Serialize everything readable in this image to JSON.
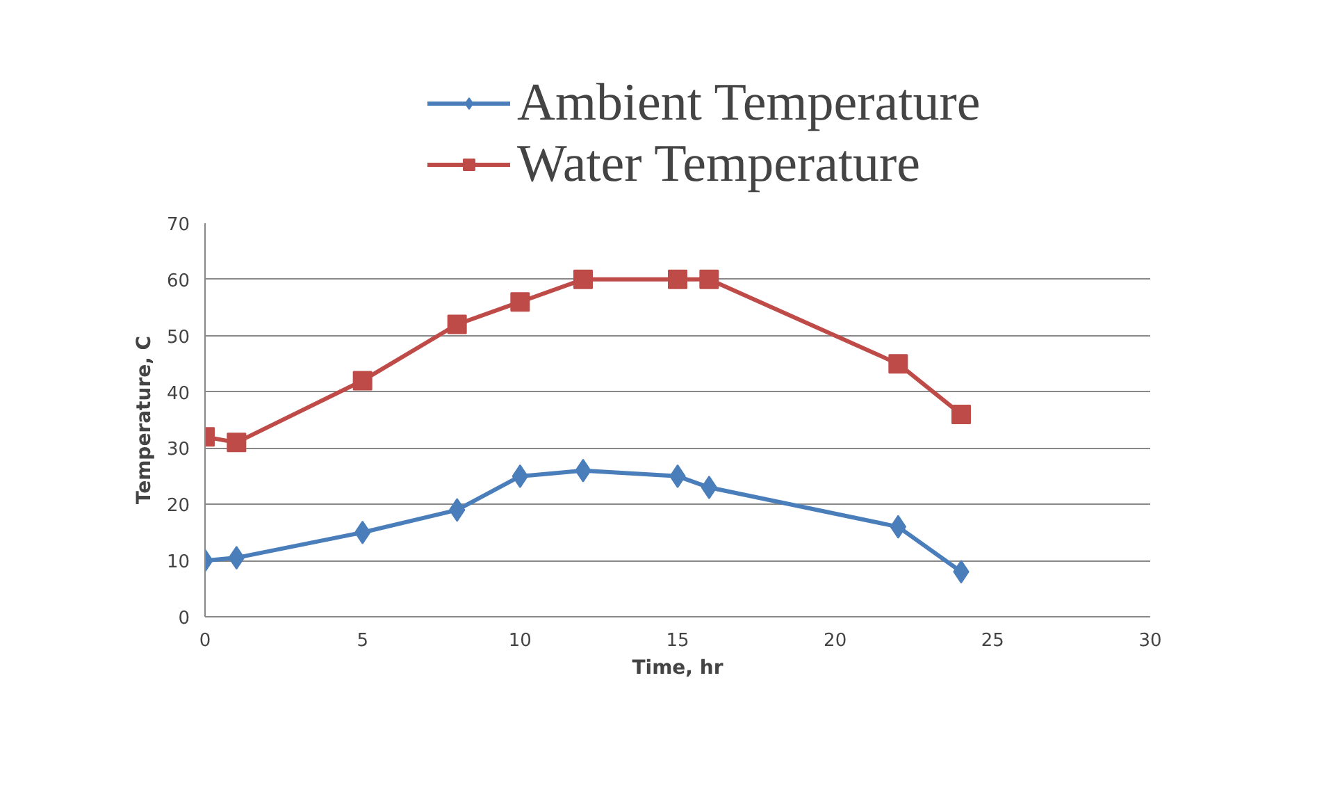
{
  "chart_data": {
    "type": "line",
    "xlabel": "Time, hr",
    "ylabel": "Temperature, C",
    "x": [
      0,
      1,
      5,
      8,
      10,
      12,
      15,
      16,
      22,
      24
    ],
    "series": [
      {
        "name": "Ambient Temperature",
        "color": "#4a7ebb",
        "marker": "diamond",
        "values": [
          10,
          10.5,
          15,
          19,
          25,
          26,
          25,
          23,
          16,
          8
        ]
      },
      {
        "name": "Water Temperature",
        "color": "#be4b48",
        "marker": "square",
        "values": [
          32,
          31,
          42,
          52,
          56,
          60,
          60,
          60,
          45,
          36
        ]
      }
    ],
    "xlim": [
      0,
      30
    ],
    "xticks": [
      0,
      5,
      10,
      15,
      20,
      25,
      30
    ],
    "ylim": [
      0,
      70
    ],
    "yticks": [
      0,
      10,
      20,
      30,
      40,
      50,
      60,
      70
    ],
    "grid": "y",
    "legend": "top"
  }
}
